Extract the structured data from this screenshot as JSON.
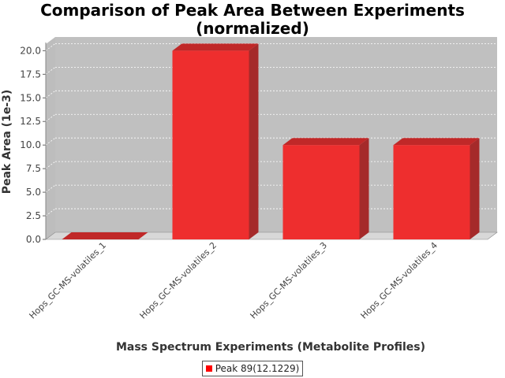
{
  "chart_data": {
    "type": "bar",
    "title_lines": [
      "Comparison of Peak Area Between Experiments",
      "(normalized)"
    ],
    "xlabel": "Mass Spectrum Experiments (Metabolite Profiles)",
    "ylabel": "Peak Area (1e-3)",
    "categories": [
      "Hops_GC-MS-volatiles_1",
      "Hops_GC-MS-volatiles_2",
      "Hops_GC-MS-volatiles_3",
      "Hops_GC-MS-volatiles_4"
    ],
    "series": [
      {
        "name": "Peak 89(12.1229)",
        "values": [
          0.0,
          20.0,
          10.0,
          10.0
        ]
      }
    ],
    "ylim": [
      0,
      20.7
    ],
    "yticks": [
      "0.0",
      "2.5",
      "5.0",
      "7.5",
      "10.0",
      "12.5",
      "15.0",
      "17.5",
      "20.0"
    ],
    "grid": true,
    "legend_position": "bottom",
    "colors": {
      "bar_front": "#ee2e2e",
      "bar_top": "#c02828",
      "bar_side": "#a52a2a",
      "plot_bg": "#c0c0c0",
      "floor": "#d8d8d8",
      "legend_swatch": "#ff0000"
    }
  }
}
